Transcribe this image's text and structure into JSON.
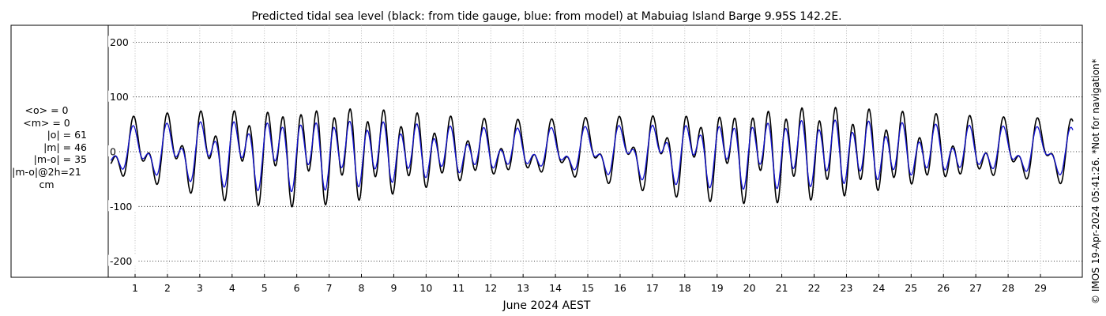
{
  "chart_data": {
    "type": "line",
    "title": "Predicted tidal sea level (black: from tide gauge, blue: from model) at Mabuiag Island Barge 9.95S 142.2E.",
    "xlabel": "June 2024 AEST",
    "ylabel": "",
    "xlim": [
      0.2,
      30.0
    ],
    "ylim": [
      -230,
      230
    ],
    "x_ticks": [
      1,
      2,
      3,
      4,
      5,
      6,
      7,
      8,
      9,
      10,
      11,
      12,
      13,
      14,
      15,
      16,
      17,
      18,
      19,
      20,
      21,
      22,
      23,
      24,
      25,
      26,
      27,
      28,
      29
    ],
    "x_tick_labels": [
      "1",
      "2",
      "3",
      "4",
      "5",
      "6",
      "7",
      "8",
      "9",
      "10",
      "11",
      "12",
      "13",
      "14",
      "15",
      "16",
      "17",
      "18",
      "19",
      "20",
      "21",
      "22",
      "23",
      "24",
      "25",
      "26",
      "27",
      "28",
      "29"
    ],
    "y_ticks": [
      -200,
      -100,
      0,
      100,
      200
    ],
    "y_tick_labels": [
      "-200",
      "-100",
      "0",
      "100",
      "200"
    ],
    "grid": true,
    "series": [
      {
        "name": "from tide gauge",
        "color": "#000000",
        "x_start": 0.25,
        "x_end": 30.0,
        "model": {
          "semidiurnal_amp": 62,
          "diurnal_amp": 40,
          "period_sd_days": 0.5175,
          "period_d_days": 1.0758
        }
      },
      {
        "name": "from model",
        "color": "#1010d0",
        "x_start": 0.25,
        "x_end": 30.0,
        "model": {
          "semidiurnal_amp": 44,
          "diurnal_amp": 30,
          "period_sd_days": 0.5175,
          "period_d_days": 1.0758
        }
      }
    ]
  },
  "stats": {
    "mean_obs": "<o> = 0",
    "mean_model": "<m> = 0",
    "abs_obs": "|o| = 61",
    "abs_model": "|m| = 46",
    "abs_diff": "|m-o| = 35",
    "abs_diff_2h": "|m-o|@2h=21",
    "unit": "cm"
  },
  "credit": "© IMOS 19-Apr-2024 05:41:26. *Not for navigation*"
}
